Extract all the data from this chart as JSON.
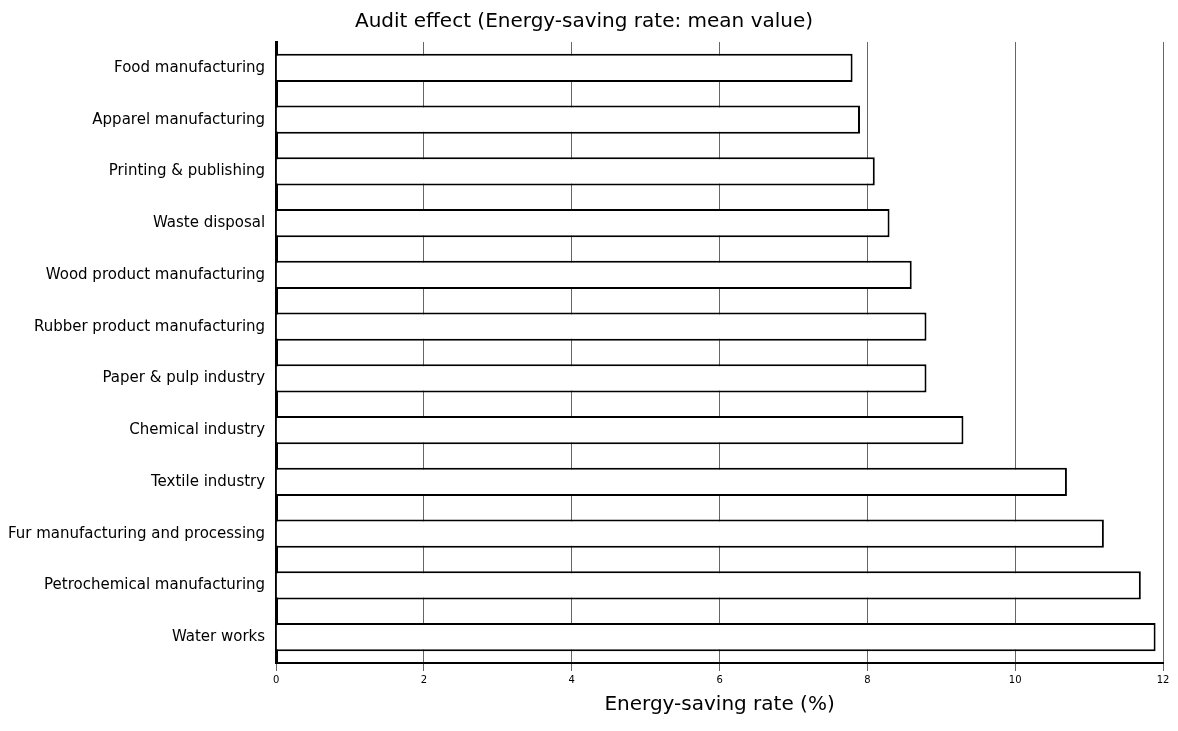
{
  "chart_data": {
    "type": "bar",
    "orientation": "horizontal",
    "title": "Audit effect (Energy-saving rate: mean value)",
    "xlabel": "Energy-saving rate (%)",
    "categories": [
      "Food manufacturing",
      "Apparel manufacturing",
      "Printing & publishing",
      "Waste disposal",
      "Wood product manufacturing",
      "Rubber product manufacturing",
      "Paper & pulp industry",
      "Chemical industry",
      "Textile industry",
      "Fur manufacturing and processing",
      "Petrochemical manufacturing",
      "Water works"
    ],
    "values": [
      7.8,
      7.9,
      8.1,
      8.3,
      8.6,
      8.8,
      8.8,
      9.3,
      10.7,
      11.2,
      11.7,
      11.9
    ],
    "color": "#ffffff",
    "xlim": [
      0,
      12
    ],
    "xticks": [
      0,
      2,
      4,
      6,
      8,
      10,
      12
    ],
    "grid": "x",
    "legend": false
  }
}
